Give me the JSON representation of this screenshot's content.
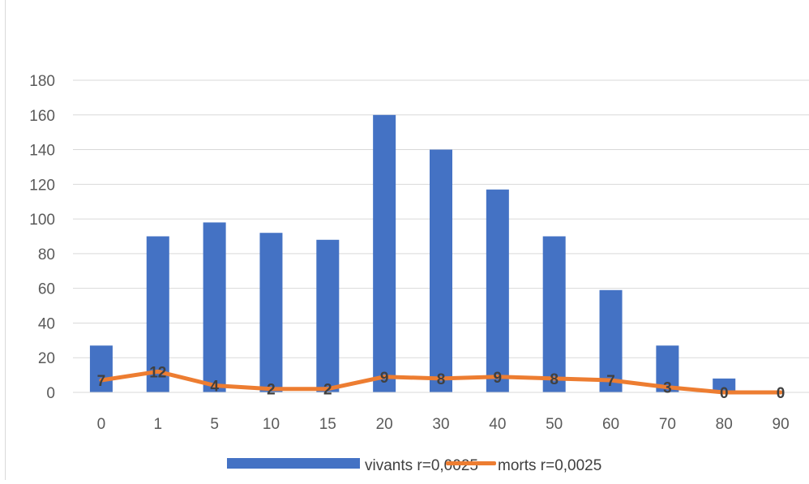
{
  "chart_data": {
    "type": "bar",
    "title": "",
    "xlabel": "",
    "ylabel": "",
    "categories": [
      "0",
      "1",
      "5",
      "10",
      "15",
      "20",
      "30",
      "40",
      "50",
      "60",
      "70",
      "80",
      "90"
    ],
    "ylim": [
      0,
      180
    ],
    "yticks": [
      "0",
      "20",
      "40",
      "60",
      "80",
      "100",
      "120",
      "140",
      "160",
      "180"
    ],
    "grid": true,
    "legend_position": "bottom",
    "series": [
      {
        "name": "vivants r=0,0025",
        "kind": "bar",
        "color": "#4472c4",
        "values": [
          27,
          90,
          98,
          92,
          88,
          160,
          140,
          117,
          90,
          59,
          27,
          8,
          0
        ]
      },
      {
        "name": "morts r=0,0025",
        "kind": "line",
        "color": "#ed7d31",
        "values": [
          7,
          12,
          4,
          2,
          2,
          9,
          8,
          9,
          8,
          7,
          3,
          0,
          0
        ],
        "labels": [
          "7",
          "12",
          "4",
          "2",
          "2",
          "9",
          "8",
          "9",
          "8",
          "7",
          "3",
          "0",
          "0"
        ]
      }
    ]
  }
}
